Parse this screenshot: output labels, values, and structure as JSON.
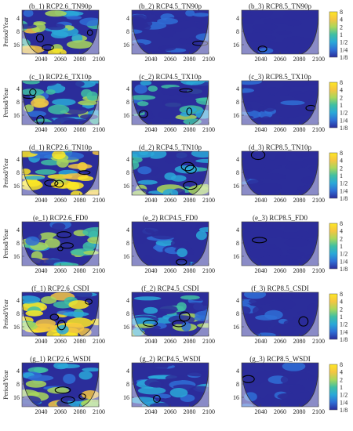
{
  "chart_data": {
    "type": "heatmap",
    "description_free": true,
    "ylabel": "Period/Year",
    "y_ticks": [
      "4",
      "8",
      "16"
    ],
    "x_ticks": [
      "2040",
      "2060",
      "2080",
      "2100"
    ],
    "xlim": [
      2020,
      2100
    ],
    "colorbar": {
      "ticks": [
        "8",
        "4",
        "2",
        "1",
        "1/2",
        "1/4",
        "1/8"
      ],
      "colors": [
        "#fde725",
        "#f5c542",
        "#a9d85b",
        "#3fbfa3",
        "#2aa8d8",
        "#2f6fd6",
        "#2b2d9a"
      ]
    },
    "rows": [
      {
        "panels": [
          {
            "title": "(b_1) RCP2.6_TN90p",
            "level": 0.55
          },
          {
            "title": "(b_2) RCP4.5_TN90p",
            "level": 0.15
          },
          {
            "title": "(b_3) RCP8.5_TN90p",
            "level": 0.05
          }
        ]
      },
      {
        "panels": [
          {
            "title": "(c_1) RCP2.6_TX10p",
            "level": 0.5
          },
          {
            "title": "(c_2) RCP4.5_TX10p",
            "level": 0.35
          },
          {
            "title": "(c_3) RCP8.5_TX10p",
            "level": 0.1
          }
        ]
      },
      {
        "panels": [
          {
            "title": "(d_1) RCP2.6_TN10p",
            "level": 0.8
          },
          {
            "title": "(d_2) RCP4.5_TN10p",
            "level": 0.4
          },
          {
            "title": "(d_3) RCP8.5_TN10p",
            "level": 0.05
          }
        ]
      },
      {
        "panels": [
          {
            "title": "(e_1) RCP2.6_FD0",
            "level": 0.55
          },
          {
            "title": "(e_2) RCP4.5_FD0",
            "level": 0.25
          },
          {
            "title": "(e_3) RCP8.5_FD0",
            "level": 0.05
          }
        ]
      },
      {
        "panels": [
          {
            "title": "(f_1) RCP2.6_CSDI",
            "level": 0.75
          },
          {
            "title": "(f_2) RCP4.5_CSDI",
            "level": 0.4
          },
          {
            "title": "(f_3) RCP8.5_CSDI",
            "level": 0.12
          }
        ]
      },
      {
        "panels": [
          {
            "title": "(g_1) RCP2.6_WSDI",
            "level": 0.5
          },
          {
            "title": "(g_2) RCP4.5_WSDI",
            "level": 0.2
          },
          {
            "title": "(g_3) RCP8.5_WSDI",
            "level": 0.08
          }
        ]
      }
    ]
  }
}
